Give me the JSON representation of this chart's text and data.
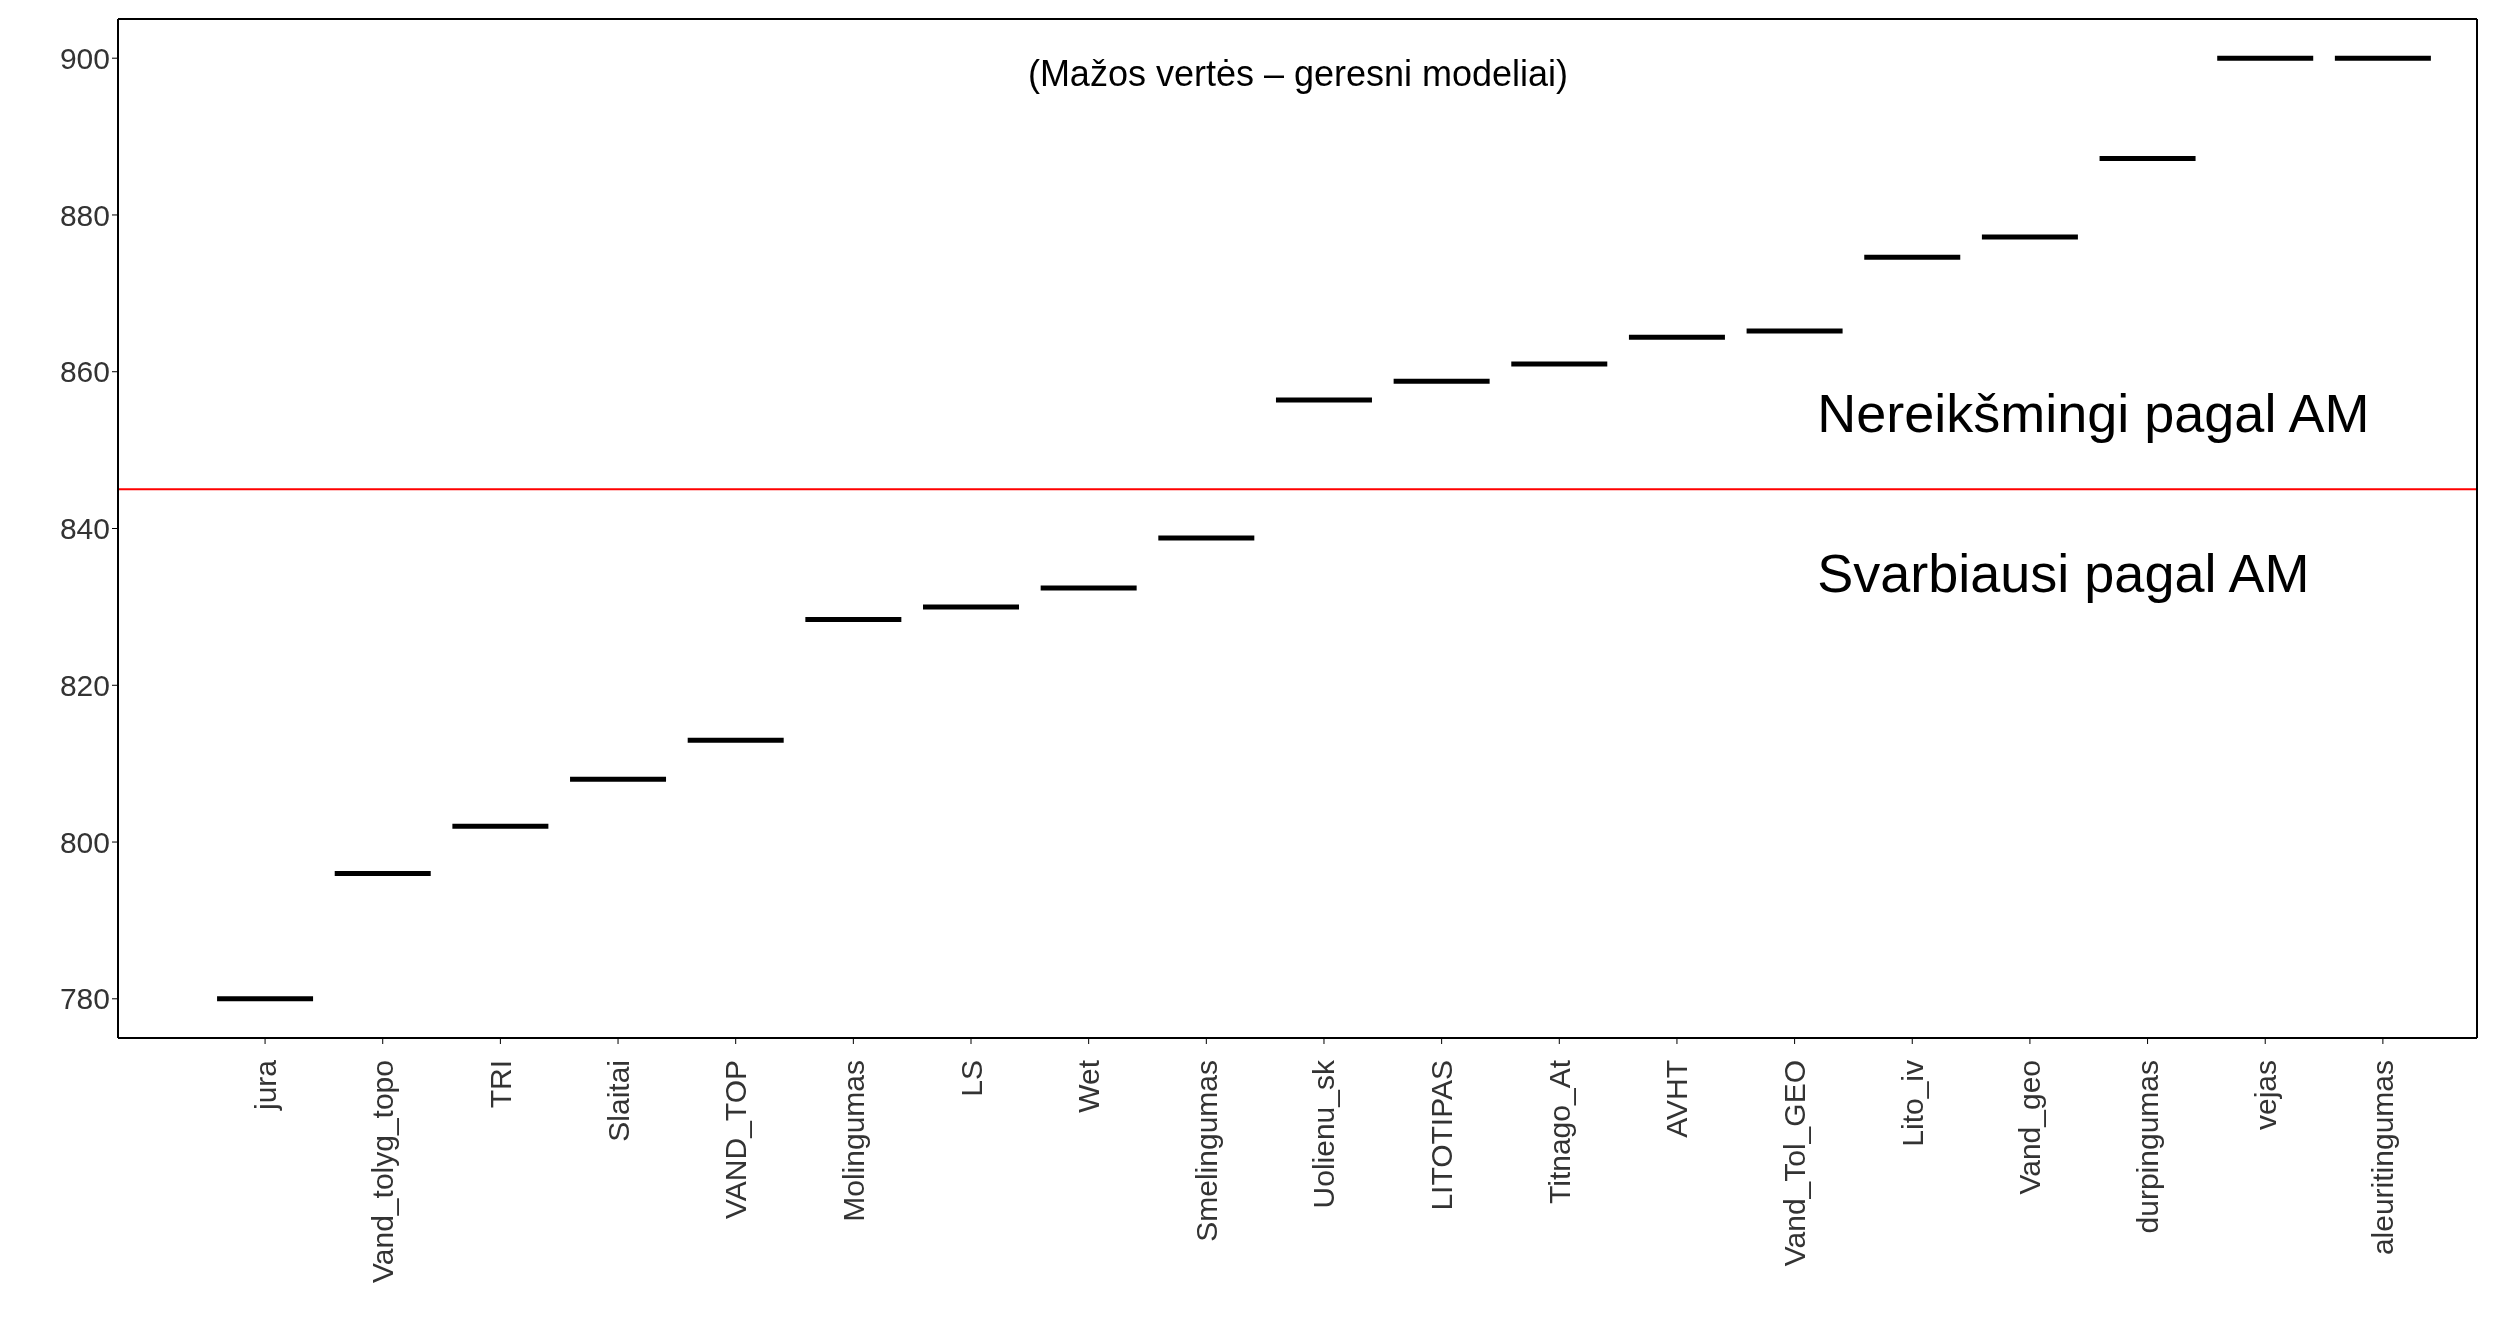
{
  "chart_data": {
    "type": "box",
    "categories": [
      "jura",
      "Vand_tolyg_topo",
      "TRI",
      "Slaitai",
      "VAND_TOP",
      "Molingumas",
      "LS",
      "Wet",
      "Smelingumas",
      "Uolienu_sk",
      "LITOTIPAS",
      "Titnago_At",
      "AVHT",
      "Vand_Tol_GEO",
      "Lito_iv",
      "Vand_geo",
      "durpingumas",
      "vejas",
      "aleuritingumas"
    ],
    "boxes": [
      {
        "low": 780,
        "q1": 780,
        "median": 780,
        "q3": 780,
        "high": 780
      },
      {
        "low": 796,
        "q1": 796,
        "median": 796,
        "q3": 796,
        "high": 796
      },
      {
        "low": 802,
        "q1": 802,
        "median": 802,
        "q3": 802,
        "high": 802
      },
      {
        "low": 808,
        "q1": 808,
        "median": 808,
        "q3": 808,
        "high": 808
      },
      {
        "low": 813,
        "q1": 813,
        "median": 813,
        "q3": 813,
        "high": 813
      },
      {
        "low": 828.4,
        "q1": 828.4,
        "median": 828.4,
        "q3": 828.4,
        "high": 828.4
      },
      {
        "low": 830,
        "q1": 830,
        "median": 830,
        "q3": 830,
        "high": 830
      },
      {
        "low": 832.4,
        "q1": 832.4,
        "median": 832.4,
        "q3": 832.4,
        "high": 832.4
      },
      {
        "low": 838.8,
        "q1": 838.8,
        "median": 838.8,
        "q3": 838.8,
        "high": 838.8
      },
      {
        "low": 856.4,
        "q1": 856.4,
        "median": 856.4,
        "q3": 856.4,
        "high": 856.4
      },
      {
        "low": 858.8,
        "q1": 858.8,
        "median": 858.8,
        "q3": 858.8,
        "high": 858.8
      },
      {
        "low": 861,
        "q1": 861,
        "median": 861,
        "q3": 861,
        "high": 861
      },
      {
        "low": 864.4,
        "q1": 864.4,
        "median": 864.4,
        "q3": 864.4,
        "high": 864.4
      },
      {
        "low": 865.2,
        "q1": 865.2,
        "median": 865.2,
        "q3": 865.2,
        "high": 865.2
      },
      {
        "low": 874.6,
        "q1": 874.6,
        "median": 874.6,
        "q3": 874.6,
        "high": 874.6
      },
      {
        "low": 877.2,
        "q1": 877.2,
        "median": 877.2,
        "q3": 877.2,
        "high": 877.2
      },
      {
        "low": 887.2,
        "q1": 887.2,
        "median": 887.2,
        "q3": 887.2,
        "high": 887.2
      },
      {
        "low": 900,
        "q1": 900,
        "median": 900,
        "q3": 900,
        "high": 900
      },
      {
        "low": 900,
        "q1": 900,
        "median": 900,
        "q3": 900,
        "high": 900
      }
    ],
    "color": "#000000",
    "ylim": [
      775,
      905
    ],
    "yticks": [
      780,
      800,
      820,
      840,
      860,
      880,
      900
    ],
    "ref_lines": [
      {
        "axis": "y",
        "value": 845,
        "color": "#ff0000"
      }
    ],
    "annotations": [
      "(Mažos vertės – geresni modeliai)",
      "Nereikšmingi pagal AM",
      "Svarbiausi pagal AM"
    ]
  }
}
